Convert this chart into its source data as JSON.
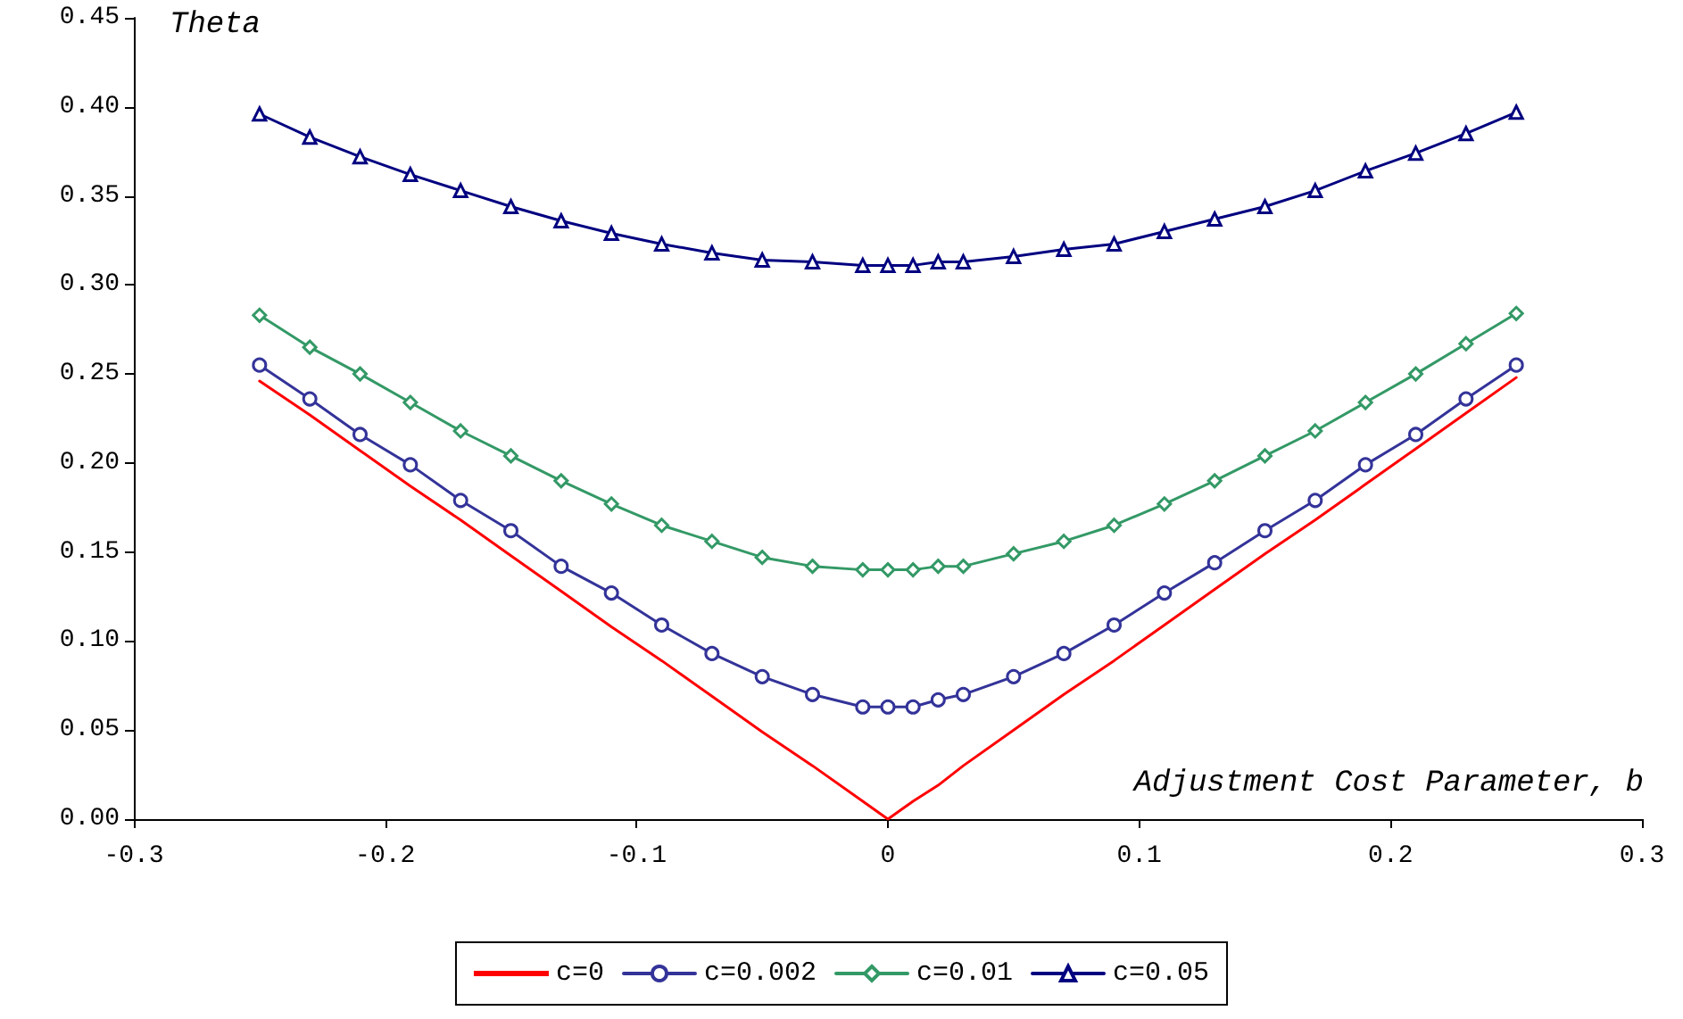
{
  "chart_data": {
    "type": "line",
    "ylabel": "Theta",
    "xlabel": "Adjustment Cost Parameter, b",
    "x": [
      -0.25,
      -0.23,
      -0.21,
      -0.19,
      -0.17,
      -0.15,
      -0.13,
      -0.11,
      -0.09,
      -0.07,
      -0.05,
      -0.03,
      -0.01,
      0,
      0.01,
      0.02,
      0.03,
      0.05,
      0.07,
      0.09,
      0.11,
      0.13,
      0.15,
      0.17,
      0.19,
      0.21,
      0.23,
      0.25
    ],
    "series": [
      {
        "name": "c=0",
        "color": "#ff0000",
        "marker": "none",
        "values": [
          0.246,
          0.227,
          0.207,
          0.187,
          0.168,
          0.148,
          0.128,
          0.108,
          0.089,
          0.069,
          0.049,
          0.03,
          0.01,
          0,
          0.01,
          0.019,
          0.03,
          0.05,
          0.07,
          0.089,
          0.109,
          0.129,
          0.149,
          0.168,
          0.188,
          0.208,
          0.228,
          0.248
        ]
      },
      {
        "name": "c=0.002",
        "color": "#333399",
        "marker": "circle",
        "values": [
          0.255,
          0.236,
          0.216,
          0.199,
          0.179,
          0.162,
          0.142,
          0.127,
          0.109,
          0.093,
          0.08,
          0.07,
          0.063,
          0.063,
          0.063,
          0.067,
          0.07,
          0.08,
          0.093,
          0.109,
          0.127,
          0.144,
          0.162,
          0.179,
          0.199,
          0.216,
          0.236,
          0.255
        ]
      },
      {
        "name": "c=0.01",
        "color": "#339966",
        "marker": "diamond",
        "values": [
          0.283,
          0.265,
          0.25,
          0.234,
          0.218,
          0.204,
          0.19,
          0.177,
          0.165,
          0.156,
          0.147,
          0.142,
          0.14,
          0.14,
          0.14,
          0.142,
          0.142,
          0.149,
          0.156,
          0.165,
          0.177,
          0.19,
          0.204,
          0.218,
          0.234,
          0.25,
          0.267,
          0.284
        ]
      },
      {
        "name": "c=0.05",
        "color": "#000080",
        "marker": "triangle",
        "values": [
          0.396,
          0.383,
          0.372,
          0.362,
          0.353,
          0.344,
          0.336,
          0.329,
          0.323,
          0.318,
          0.314,
          0.313,
          0.311,
          0.311,
          0.311,
          0.313,
          0.313,
          0.316,
          0.32,
          0.323,
          0.33,
          0.337,
          0.344,
          0.353,
          0.364,
          0.374,
          0.385,
          0.397
        ]
      }
    ],
    "xlim": [
      -0.3,
      0.3
    ],
    "xticks": [
      -0.3,
      -0.2,
      -0.1,
      0,
      0.1,
      0.2,
      0.3
    ],
    "ylim": [
      0,
      0.45
    ],
    "yticks": [
      {
        "value": 0,
        "label": "0.00"
      },
      {
        "value": 0.05,
        "label": "0.05"
      },
      {
        "value": 0.1,
        "label": "0.10"
      },
      {
        "value": 0.15,
        "label": "0.15"
      },
      {
        "value": 0.2,
        "label": "0.20"
      },
      {
        "value": 0.25,
        "label": "0.25"
      },
      {
        "value": 0.3,
        "label": "0.30"
      },
      {
        "value": 0.35,
        "label": "0.35"
      },
      {
        "value": 0.4,
        "label": "0.40"
      },
      {
        "value": 0.45,
        "label": "0.45"
      }
    ],
    "grid": false,
    "legend": "bottom",
    "line_style": "solid"
  }
}
